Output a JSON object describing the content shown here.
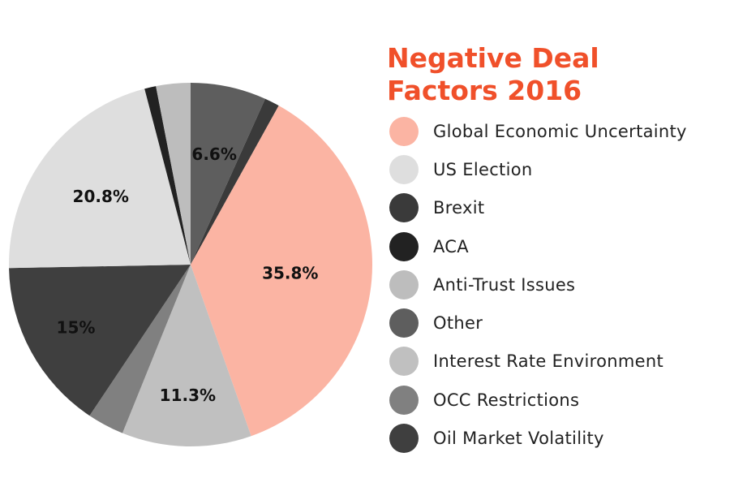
{
  "chart_data": {
    "type": "pie",
    "title": "Negative Deal Factors 2016",
    "legend_position": "right",
    "slices_in_draw_order": [
      {
        "name": "Other",
        "value": 6.6,
        "label": "6.6%",
        "color": "#5e5e5e"
      },
      {
        "name": "Brexit",
        "value": 1.3,
        "label": "",
        "color": "#3a3a3a"
      },
      {
        "name": "Global Economic Uncertainty",
        "value": 35.8,
        "label": "35.8%",
        "color": "#fbb4a3"
      },
      {
        "name": "Interest Rate Environment",
        "value": 11.3,
        "label": "11.3%",
        "color": "#c0c0c0"
      },
      {
        "name": "OCC Restrictions",
        "value": 3.2,
        "label": "",
        "color": "#808080"
      },
      {
        "name": "Oil Market Volatility",
        "value": 15,
        "label": "15%",
        "color": "#3f3f3f"
      },
      {
        "name": "US Election",
        "value": 20.8,
        "label": "20.8%",
        "color": "#dedede"
      },
      {
        "name": "ACA",
        "value": 1.0,
        "label": "",
        "color": "#222222"
      },
      {
        "name": "Anti-Trust Issues",
        "value": 3.0,
        "label": "",
        "color": "#bdbdbd"
      }
    ],
    "legend": [
      {
        "name": "Global Economic Uncertainty",
        "color": "#fbb4a3"
      },
      {
        "name": "US Election",
        "color": "#dedede"
      },
      {
        "name": "Brexit",
        "color": "#3a3a3a"
      },
      {
        "name": "ACA",
        "color": "#222222"
      },
      {
        "name": "Anti-Trust Issues",
        "color": "#bdbdbd"
      },
      {
        "name": "Other",
        "color": "#5e5e5e"
      },
      {
        "name": "Interest Rate Environment",
        "color": "#c0c0c0"
      },
      {
        "name": "OCC Restrictions",
        "color": "#808080"
      },
      {
        "name": "Oil Market Volatility",
        "color": "#3f3f3f"
      }
    ]
  }
}
